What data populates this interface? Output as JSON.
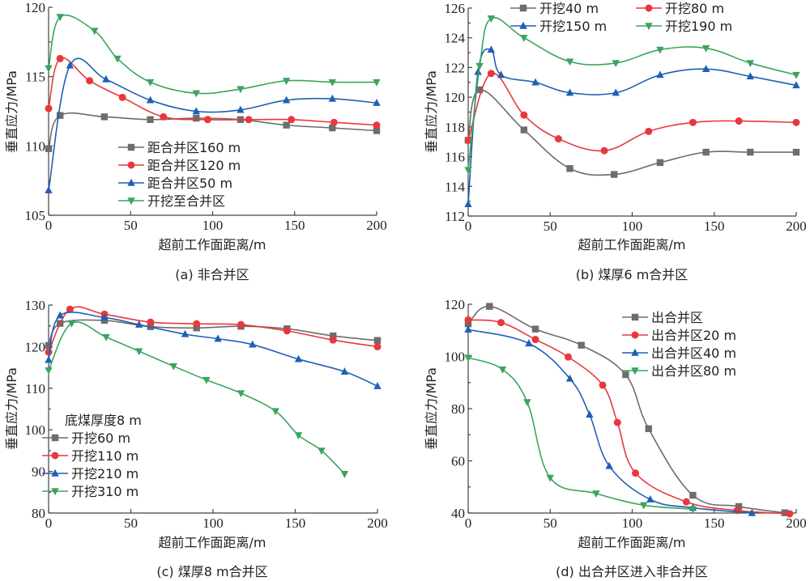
{
  "colors": {
    "gray": "#6d6d6d",
    "red": "#e8383d",
    "blue": "#1f5fb5",
    "green": "#3aa55c",
    "axis": "#444444"
  },
  "chart_data": [
    {
      "id": "a",
      "type": "line",
      "caption": "(a)  非合并区",
      "xlabel": "超前工作面距离/m",
      "ylabel": "垂直应力/MPa",
      "xlim": [
        0,
        200
      ],
      "ylim": [
        105,
        120
      ],
      "xticks": [
        0,
        50,
        100,
        150,
        200
      ],
      "yticks": [
        105,
        110,
        115,
        120
      ],
      "legend_position": "center",
      "legend_title": "",
      "series": [
        {
          "name": "距合并区160 m",
          "color": "gray",
          "marker": "square",
          "x": [
            0,
            7,
            34,
            62,
            90,
            117,
            145,
            173,
            200
          ],
          "y": [
            109.8,
            112.2,
            112.1,
            111.9,
            112.0,
            111.9,
            111.5,
            111.3,
            111.1
          ]
        },
        {
          "name": "距合并区120 m",
          "color": "red",
          "marker": "circle",
          "x": [
            0,
            7,
            25,
            45,
            70,
            97,
            122,
            148,
            174,
            200
          ],
          "y": [
            112.7,
            116.3,
            114.7,
            113.5,
            112.1,
            111.9,
            111.9,
            111.9,
            111.7,
            111.5
          ]
        },
        {
          "name": "距合并区50 m",
          "color": "blue",
          "marker": "triangle-up",
          "x": [
            0,
            13,
            35,
            62,
            90,
            117,
            145,
            173,
            200
          ],
          "y": [
            106.8,
            115.8,
            114.8,
            113.3,
            112.5,
            112.6,
            113.3,
            113.4,
            113.1
          ]
        },
        {
          "name": "开挖至合并区",
          "color": "green",
          "marker": "triangle-down",
          "x": [
            0,
            7,
            28,
            42,
            62,
            90,
            117,
            145,
            173,
            200
          ],
          "y": [
            115.6,
            119.3,
            118.3,
            116.3,
            114.6,
            113.8,
            114.1,
            114.7,
            114.6,
            114.6
          ]
        }
      ]
    },
    {
      "id": "b",
      "type": "line",
      "caption": "(b)  煤厚6 m合并区",
      "xlabel": "超前工作面距离/m",
      "ylabel": "垂直应力/MPa",
      "xlim": [
        0,
        200
      ],
      "ylim": [
        112,
        126
      ],
      "xticks": [
        0,
        50,
        100,
        150,
        200
      ],
      "yticks": [
        112,
        114,
        116,
        118,
        120,
        122,
        124,
        126
      ],
      "legend_position": "top",
      "legend_title": "",
      "series": [
        {
          "name": "开挖40 m",
          "color": "gray",
          "marker": "square",
          "x": [
            0,
            7,
            34,
            62,
            89,
            117,
            145,
            172,
            200
          ],
          "y": [
            117.1,
            120.5,
            117.8,
            115.2,
            114.8,
            115.6,
            116.3,
            116.3,
            116.3
          ]
        },
        {
          "name": "开挖80 m",
          "color": "red",
          "marker": "circle",
          "x": [
            0,
            14,
            34,
            55,
            83,
            110,
            137,
            165,
            200
          ],
          "y": [
            117.1,
            121.6,
            118.8,
            117.2,
            116.4,
            117.7,
            118.3,
            118.4,
            118.3
          ]
        },
        {
          "name": "开挖150 m",
          "color": "blue",
          "marker": "triangle-up",
          "x": [
            0,
            6,
            14,
            20,
            41,
            62,
            90,
            117,
            145,
            172,
            200
          ],
          "y": [
            112.8,
            121.7,
            123.2,
            121.5,
            121.0,
            120.3,
            120.3,
            121.5,
            121.9,
            121.4,
            120.8
          ]
        },
        {
          "name": "开挖190 m",
          "color": "green",
          "marker": "triangle-down",
          "x": [
            0,
            7,
            14,
            34,
            62,
            90,
            117,
            145,
            172,
            200
          ],
          "y": [
            115.1,
            122.1,
            125.3,
            124.0,
            122.4,
            122.3,
            123.2,
            123.3,
            122.3,
            121.5
          ]
        }
      ]
    },
    {
      "id": "c",
      "type": "line",
      "caption": "(c)  煤厚8 m合并区",
      "xlabel": "超前工作面距离/m",
      "ylabel": "垂直应力/MPa",
      "xlim": [
        0,
        200
      ],
      "ylim": [
        80,
        130
      ],
      "xticks": [
        0,
        50,
        100,
        150,
        200
      ],
      "yticks": [
        80,
        90,
        100,
        110,
        120,
        130
      ],
      "legend_position": "bottom-left",
      "legend_title": "底煤厚度8 m",
      "series": [
        {
          "name": "开挖60 m",
          "color": "gray",
          "marker": "square",
          "x": [
            0,
            7,
            34,
            62,
            90,
            117,
            145,
            173,
            200
          ],
          "y": [
            120.3,
            125.6,
            126.3,
            124.8,
            124.5,
            124.9,
            124.3,
            122.6,
            121.5
          ]
        },
        {
          "name": "开挖110 m",
          "color": "red",
          "marker": "circle",
          "x": [
            0,
            13,
            34,
            62,
            90,
            117,
            145,
            173,
            200
          ],
          "y": [
            118.7,
            129.0,
            127.8,
            125.9,
            125.5,
            125.3,
            123.8,
            121.6,
            120.0
          ]
        },
        {
          "name": "开挖210 m",
          "color": "blue",
          "marker": "triangle-up",
          "x": [
            0,
            7,
            34,
            55,
            83,
            103,
            124,
            152,
            180,
            200
          ],
          "y": [
            116.8,
            127.5,
            127.0,
            125.3,
            123.0,
            121.9,
            120.5,
            117.0,
            114.0,
            110.5
          ]
        },
        {
          "name": "开挖310 m",
          "color": "green",
          "marker": "triangle-down",
          "x": [
            0,
            14,
            35,
            55,
            76,
            96,
            117,
            138,
            152,
            166,
            180
          ],
          "y": [
            114.3,
            125.6,
            122.3,
            118.9,
            115.3,
            112.0,
            108.8,
            104.5,
            98.7,
            95.0,
            89.4
          ]
        }
      ]
    },
    {
      "id": "d",
      "type": "line",
      "caption": "(d)  出合并区进入非合并区",
      "xlabel": "超前工作面距离/m",
      "ylabel": "垂直应力/MPa",
      "xlim": [
        0,
        200
      ],
      "ylim": [
        40,
        120
      ],
      "xticks": [
        0,
        50,
        100,
        150,
        200
      ],
      "yticks": [
        40,
        60,
        80,
        100,
        120
      ],
      "legend_position": "top-right",
      "legend_title": "",
      "series": [
        {
          "name": "出合并区",
          "color": "gray",
          "marker": "square",
          "x": [
            0,
            13,
            41,
            69,
            96,
            110,
            137,
            165,
            193
          ],
          "y": [
            112.5,
            119.2,
            110.5,
            104.3,
            93.0,
            72.3,
            46.8,
            42.5,
            40.1
          ]
        },
        {
          "name": "出合并区20 m",
          "color": "red",
          "marker": "circle",
          "x": [
            0,
            20,
            41,
            61,
            82,
            91,
            102,
            133,
            164,
            196
          ],
          "y": [
            114.0,
            113.0,
            106.5,
            99.8,
            89.0,
            74.7,
            55.3,
            44.3,
            41.0,
            39.7
          ]
        },
        {
          "name": "出合并区40 m",
          "color": "blue",
          "marker": "triangle-up",
          "x": [
            0,
            37,
            62,
            74,
            86,
            111,
            137,
            173
          ],
          "y": [
            110.3,
            105.0,
            91.5,
            77.7,
            58.0,
            45.2,
            42.0,
            40.0
          ]
        },
        {
          "name": "出合并区80 m",
          "color": "green",
          "marker": "triangle-down",
          "x": [
            0,
            21,
            36,
            50,
            78,
            107,
            137
          ],
          "y": [
            99.5,
            95.0,
            82.5,
            53.5,
            47.5,
            43.0,
            41.5
          ]
        }
      ]
    }
  ]
}
